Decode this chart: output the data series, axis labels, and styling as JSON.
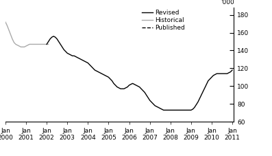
{
  "ylabel_right": "'000",
  "ylim": [
    60,
    188
  ],
  "yticks": [
    60,
    80,
    100,
    120,
    140,
    160,
    180
  ],
  "background_color": "#ffffff",
  "historical_color": "#aaaaaa",
  "revised_color": "#000000",
  "historical_data": {
    "x": [
      2000.0,
      2000.083,
      2000.167,
      2000.25,
      2000.333,
      2000.417,
      2000.5,
      2000.583,
      2000.667,
      2000.75,
      2000.833,
      2000.917,
      2001.0,
      2001.083,
      2001.167,
      2001.25,
      2001.333,
      2001.417,
      2001.5,
      2001.583,
      2001.667,
      2001.75,
      2001.833,
      2001.917,
      2002.0,
      2002.083
    ],
    "y": [
      172,
      168,
      163,
      158,
      153,
      149,
      147,
      146,
      145,
      144,
      144,
      144,
      145,
      146,
      147,
      147,
      147,
      147,
      147,
      147,
      147,
      147,
      147,
      147,
      147,
      147
    ]
  },
  "revised_data": {
    "x": [
      2002.0,
      2002.083,
      2002.167,
      2002.25,
      2002.333,
      2002.417,
      2002.5,
      2002.583,
      2002.667,
      2002.75,
      2002.833,
      2002.917,
      2003.0,
      2003.083,
      2003.167,
      2003.25,
      2003.333,
      2003.417,
      2003.5,
      2003.583,
      2003.667,
      2003.75,
      2003.833,
      2003.917,
      2004.0,
      2004.083,
      2004.167,
      2004.25,
      2004.333,
      2004.417,
      2004.5,
      2004.583,
      2004.667,
      2004.75,
      2004.833,
      2004.917,
      2005.0,
      2005.083,
      2005.167,
      2005.25,
      2005.333,
      2005.417,
      2005.5,
      2005.583,
      2005.667,
      2005.75,
      2005.833,
      2005.917,
      2006.0,
      2006.083,
      2006.167,
      2006.25,
      2006.333,
      2006.417,
      2006.5,
      2006.583,
      2006.667,
      2006.75,
      2006.833,
      2006.917,
      2007.0,
      2007.083,
      2007.167,
      2007.25,
      2007.333,
      2007.417,
      2007.5,
      2007.583,
      2007.667,
      2007.75,
      2007.833,
      2007.917,
      2008.0,
      2008.083,
      2008.167,
      2008.25,
      2008.333,
      2008.417,
      2008.5,
      2008.583,
      2008.667,
      2008.75,
      2008.833,
      2008.917,
      2009.0,
      2009.083,
      2009.167,
      2009.25,
      2009.333,
      2009.417,
      2009.5,
      2009.583,
      2009.667,
      2009.75,
      2009.833,
      2009.917,
      2010.0,
      2010.083,
      2010.167,
      2010.25,
      2010.333,
      2010.417,
      2010.5,
      2010.583,
      2010.667,
      2010.75,
      2010.833,
      2010.917,
      2011.0
    ],
    "y": [
      147,
      150,
      153,
      155,
      156,
      155,
      153,
      150,
      147,
      144,
      141,
      139,
      137,
      136,
      135,
      134,
      134,
      133,
      132,
      131,
      130,
      129,
      128,
      127,
      126,
      124,
      122,
      120,
      118,
      117,
      116,
      115,
      114,
      113,
      112,
      111,
      110,
      108,
      106,
      103,
      101,
      99,
      98,
      97,
      97,
      97,
      98,
      99,
      101,
      102,
      103,
      102,
      101,
      100,
      99,
      97,
      95,
      93,
      90,
      87,
      84,
      82,
      80,
      78,
      77,
      76,
      75,
      74,
      73,
      73,
      73,
      73,
      73,
      73,
      73,
      73,
      73,
      73,
      73,
      73,
      73,
      73,
      73,
      73,
      73,
      74,
      76,
      79,
      82,
      86,
      90,
      94,
      98,
      102,
      106,
      108,
      110,
      112,
      113,
      114,
      114,
      114,
      114,
      114,
      114,
      114,
      115,
      116,
      118
    ]
  },
  "xtick_years": [
    2000,
    2001,
    2002,
    2003,
    2004,
    2005,
    2006,
    2007,
    2008,
    2009,
    2010,
    2011
  ],
  "legend_entries": [
    "Revised",
    "Historical",
    "Published"
  ],
  "legend_fontsize": 6.5,
  "tick_fontsize": 6.5
}
